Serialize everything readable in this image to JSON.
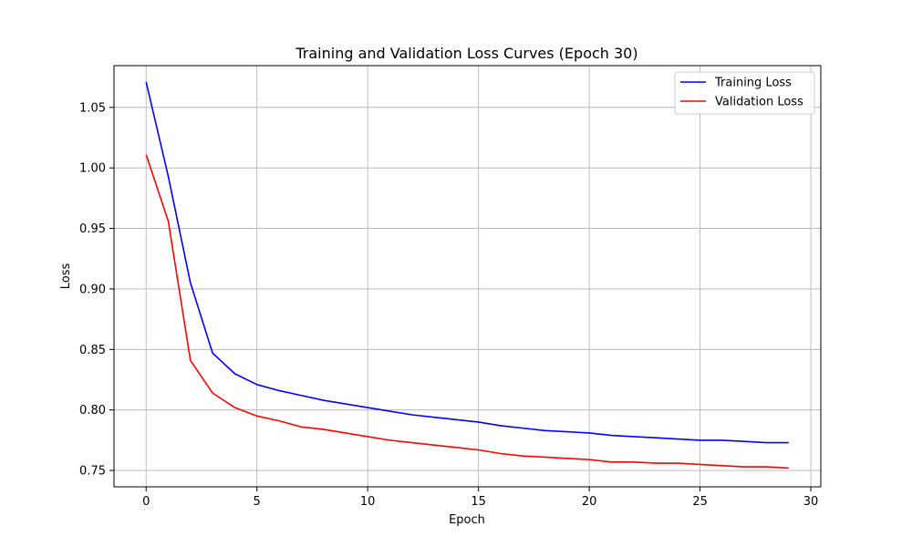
{
  "chart_data": {
    "type": "line",
    "title": "Training and Validation Loss Curves (Epoch 30)",
    "xlabel": "Epoch",
    "ylabel": "Loss",
    "xlim": [
      -1.45,
      30.45
    ],
    "ylim": [
      0.7365,
      1.0845
    ],
    "xticks": [
      0,
      5,
      10,
      15,
      20,
      25,
      30
    ],
    "yticks": [
      0.75,
      0.8,
      0.85,
      0.9,
      0.95,
      1.0,
      1.05
    ],
    "xtick_labels": [
      "0",
      "5",
      "10",
      "15",
      "20",
      "25",
      "30"
    ],
    "ytick_labels": [
      "0.75",
      "0.80",
      "0.85",
      "0.90",
      "0.95",
      "1.00",
      "1.05"
    ],
    "grid": true,
    "legend_position": "top-right",
    "x": [
      0,
      1,
      2,
      3,
      4,
      5,
      6,
      7,
      8,
      9,
      10,
      11,
      12,
      13,
      14,
      15,
      16,
      17,
      18,
      19,
      20,
      21,
      22,
      23,
      24,
      25,
      26,
      27,
      28,
      29
    ],
    "series": [
      {
        "name": "Training Loss",
        "color": "#0000ff",
        "values": [
          1.071,
          0.993,
          0.905,
          0.847,
          0.83,
          0.821,
          0.816,
          0.812,
          0.808,
          0.805,
          0.802,
          0.799,
          0.796,
          0.794,
          0.792,
          0.79,
          0.787,
          0.785,
          0.783,
          0.782,
          0.781,
          0.779,
          0.778,
          0.777,
          0.776,
          0.775,
          0.775,
          0.774,
          0.773,
          0.773
        ]
      },
      {
        "name": "Validation Loss",
        "color": "#ff0000",
        "values": [
          1.011,
          0.956,
          0.841,
          0.814,
          0.802,
          0.795,
          0.791,
          0.786,
          0.784,
          0.781,
          0.778,
          0.775,
          0.773,
          0.771,
          0.769,
          0.767,
          0.764,
          0.762,
          0.761,
          0.76,
          0.759,
          0.757,
          0.757,
          0.756,
          0.756,
          0.755,
          0.754,
          0.753,
          0.753,
          0.752
        ]
      }
    ]
  }
}
